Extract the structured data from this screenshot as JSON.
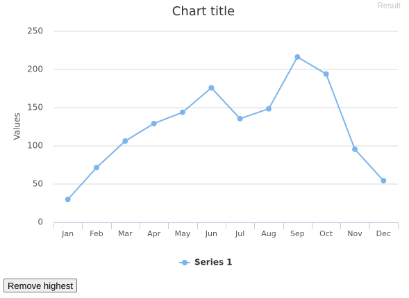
{
  "result_label": "Result",
  "chart_data": {
    "type": "line",
    "title": "Chart title",
    "y_label": "Values",
    "categories": [
      "Jan",
      "Feb",
      "Mar",
      "Apr",
      "May",
      "Jun",
      "Jul",
      "Aug",
      "Sep",
      "Oct",
      "Nov",
      "Dec"
    ],
    "series": [
      {
        "name": "Series 1",
        "color": "#7cb5ec",
        "values": [
          29.9,
          71.5,
          106.4,
          129.2,
          144.0,
          176.0,
          135.6,
          148.5,
          216.4,
          194.1,
          95.6,
          54.4
        ]
      }
    ],
    "ylim": [
      0,
      250
    ],
    "yticks": [
      0,
      50,
      100,
      150,
      200,
      250
    ],
    "grid": true,
    "legend": "bottom"
  },
  "button": {
    "label": "Remove highest"
  }
}
